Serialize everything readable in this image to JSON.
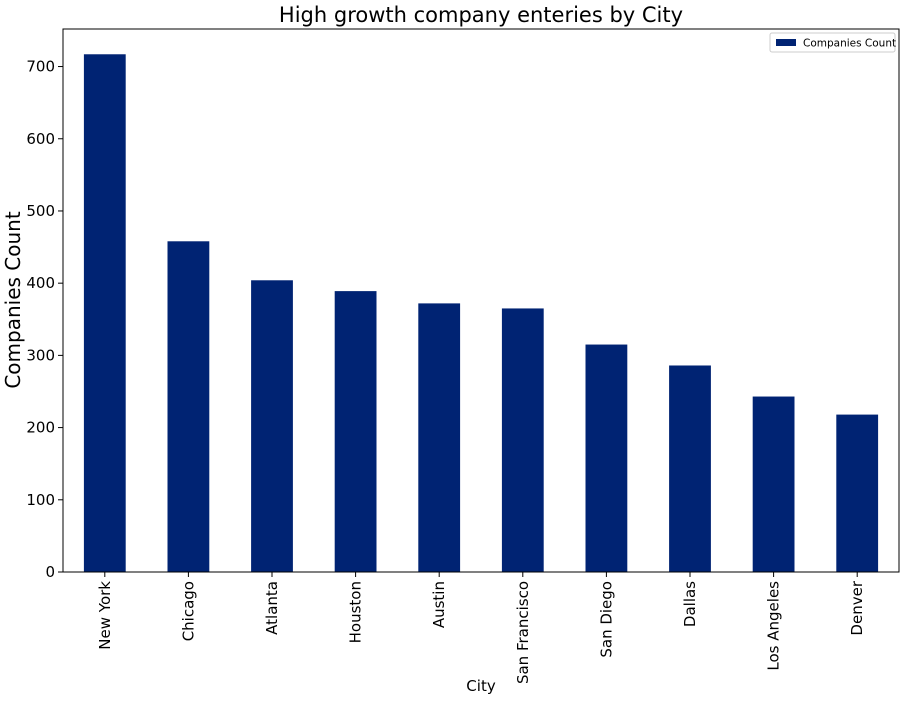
{
  "chart_data": {
    "type": "bar",
    "title": "High growth company enteries by City",
    "xlabel": "City",
    "ylabel": "Companies Count",
    "categories": [
      "New York",
      "Chicago",
      "Atlanta",
      "Houston",
      "Austin",
      "San Francisco",
      "San Diego",
      "Dallas",
      "Los Angeles",
      "Denver"
    ],
    "series": [
      {
        "name": "Companies Count",
        "values": [
          717,
          458,
          404,
          389,
          372,
          365,
          315,
          286,
          243,
          218
        ]
      }
    ],
    "ylim": [
      0,
      752
    ],
    "yticks": [
      "0",
      "100",
      "200",
      "300",
      "400",
      "500",
      "600",
      "700"
    ],
    "grid": false,
    "legend": "top-right",
    "bar_color": "#002373"
  }
}
